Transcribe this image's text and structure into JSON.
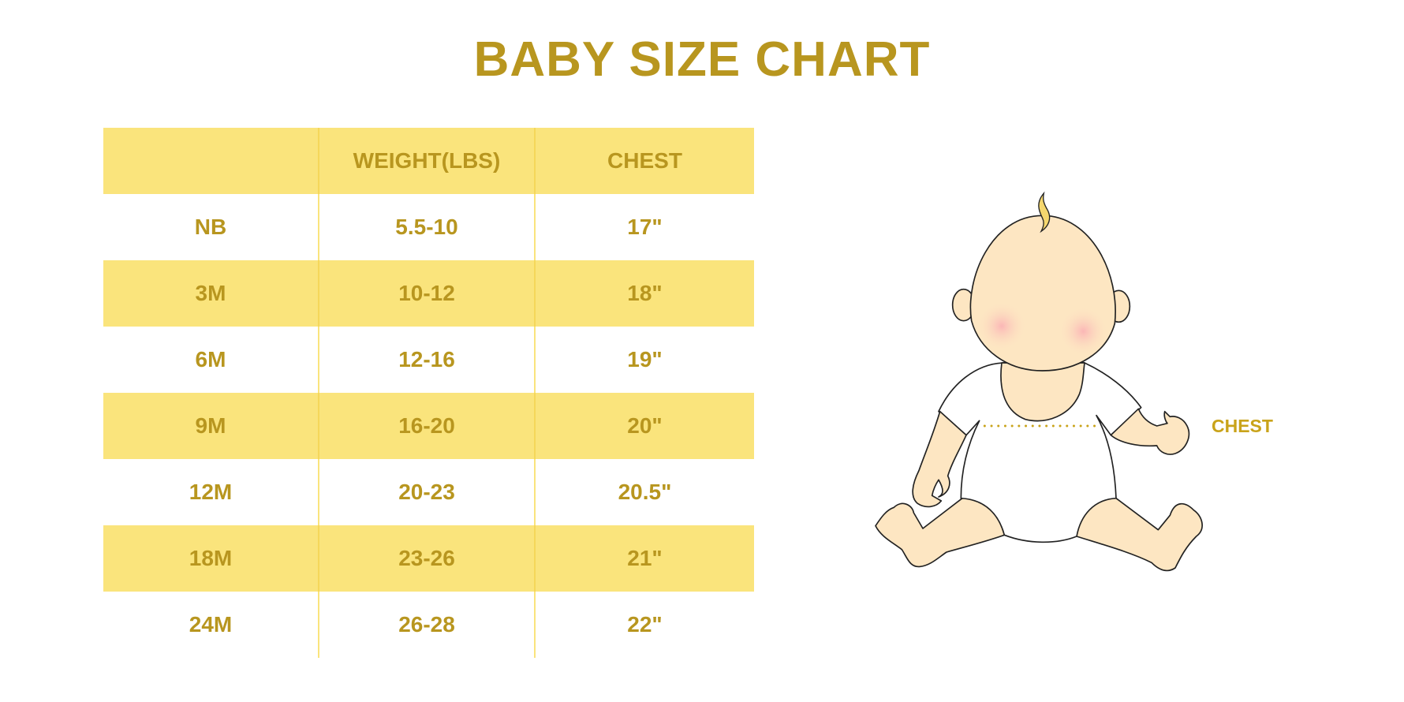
{
  "title": "BABY SIZE CHART",
  "colors": {
    "accent": "#b8961f",
    "row_highlight": "#fae47c",
    "skin": "#fde6c2",
    "hair": "#f5d76e"
  },
  "table": {
    "headers": [
      "",
      "WEIGHT(LBS)",
      "CHEST"
    ],
    "rows": [
      [
        "NB",
        "5.5-10",
        "17\""
      ],
      [
        "3M",
        "10-12",
        "18\""
      ],
      [
        "6M",
        "12-16",
        "19\""
      ],
      [
        "9M",
        "16-20",
        "20\""
      ],
      [
        "12M",
        "20-23",
        "20.5\""
      ],
      [
        "18M",
        "23-26",
        "21\""
      ],
      [
        "24M",
        "26-28",
        "22\""
      ]
    ]
  },
  "illustration": {
    "chest_label": "CHEST"
  }
}
